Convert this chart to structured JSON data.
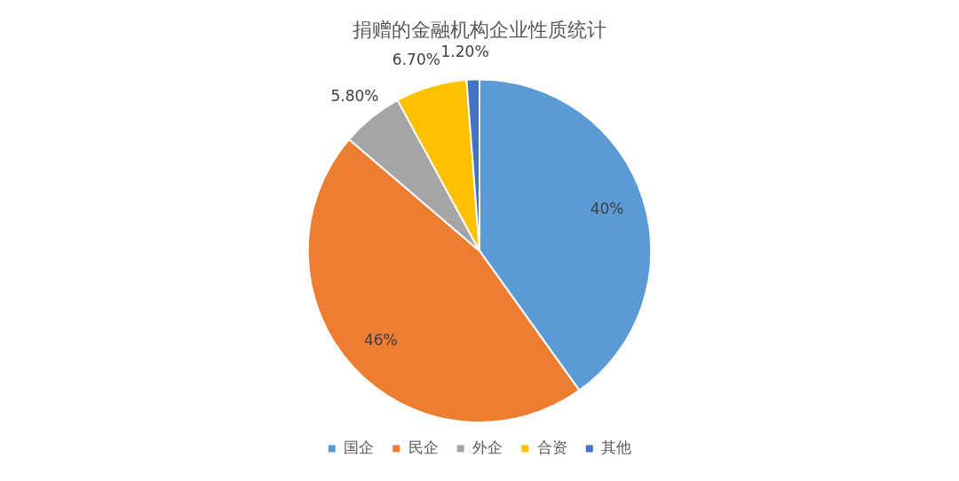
{
  "chart_data": {
    "type": "pie",
    "title": "捐赠的金融机构企业性质统计",
    "categories": [
      "国企",
      "民企",
      "外企",
      "合资",
      "其他"
    ],
    "values": [
      40,
      46,
      5.8,
      6.7,
      1.2
    ],
    "value_labels": [
      "40%",
      "46%",
      "5.80%",
      "6.70%",
      "1.20%"
    ],
    "colors": [
      "#5b9bd5",
      "#ed7d31",
      "#a5a5a5",
      "#ffc000",
      "#4472c4"
    ],
    "legend": "bottom"
  }
}
